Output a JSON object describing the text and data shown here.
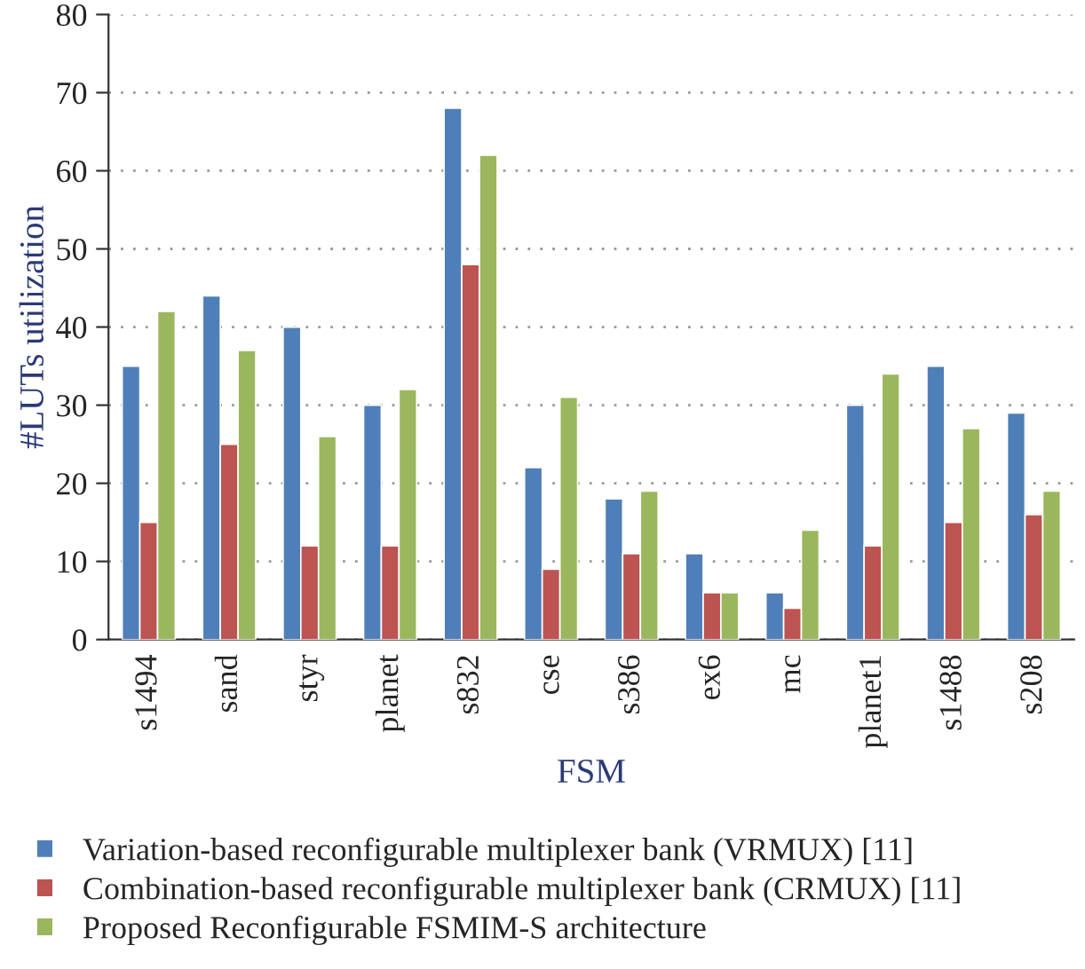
{
  "chart_data": {
    "type": "bar",
    "xlabel": "FSM",
    "ylabel": "#LUTs utilization",
    "categories": [
      "s1494",
      "sand",
      "styr",
      "planet",
      "s832",
      "cse",
      "s386",
      "ex6",
      "mc",
      "planet1",
      "s1488",
      "s208"
    ],
    "series": [
      {
        "name": "Variation-based reconfigurable multiplexer bank (VRMUX) [11]",
        "color": "#4f7fb8",
        "values": [
          35,
          44,
          40,
          30,
          68,
          22,
          18,
          11,
          6,
          30,
          35,
          29
        ]
      },
      {
        "name": "Combination-based reconfigurable multiplexer bank (CRMUX) [11]",
        "color": "#bc5452",
        "values": [
          15,
          25,
          12,
          12,
          48,
          9,
          11,
          6,
          4,
          12,
          15,
          16
        ]
      },
      {
        "name": "Proposed Reconfigurable FSMIM-S architecture",
        "color": "#9bb75d",
        "values": [
          42,
          37,
          26,
          32,
          62,
          31,
          19,
          6,
          14,
          34,
          27,
          19
        ]
      }
    ],
    "ylim": [
      0,
      80
    ],
    "yticks": [
      0,
      10,
      20,
      30,
      40,
      50,
      60,
      70,
      80
    ],
    "grid": "y",
    "legend": "bottom"
  }
}
